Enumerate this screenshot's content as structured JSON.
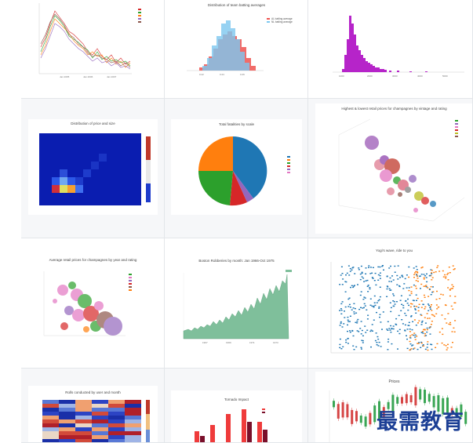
{
  "gallery": {
    "row1": {
      "c2_title": "Distribution of team batting averages",
      "c2_legend": [
        "AL batting average",
        "NL batting average"
      ]
    },
    "row2": {
      "c1_title": "Distribution of price and size",
      "c2_title": "Total fatalities by scale",
      "c3_title": "Highest & lowest retail prices for champagnes by vintage and rating"
    },
    "row3": {
      "c1_title": "Average retail prices for champagnes by year and rating",
      "c2_title": "Boston Robberies by month: Jan 1966-Oct 1975",
      "c3_title": "Yogi's wave, ride to you"
    },
    "row4": {
      "c1_title": "Rolls conducted by user and month",
      "c2_title": "Tornado Impact",
      "c3_title": "Prices"
    }
  },
  "watermark": "最需教育",
  "colors": {
    "blue": "#1f77b4",
    "orange": "#ff7f0e",
    "green": "#2ca02c",
    "red": "#d62728",
    "purple": "#9467bd",
    "magenta": "#b624c9",
    "teal_area": "#7fbf9b"
  }
}
